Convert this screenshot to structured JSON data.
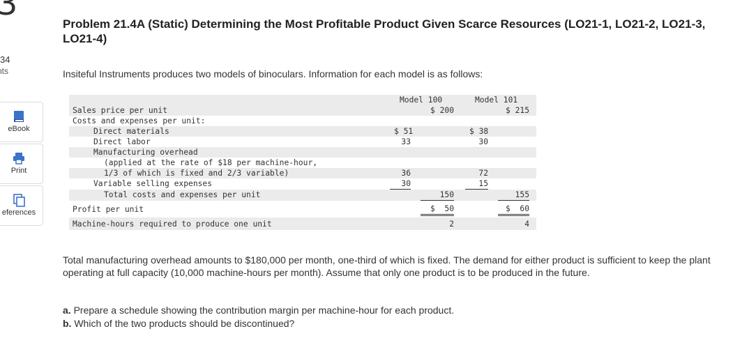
{
  "rail": {
    "question_number": "3",
    "points_value": "34",
    "points_label": "nts",
    "tools": [
      {
        "label": "eBook"
      },
      {
        "label": "Print"
      },
      {
        "label": "eferences"
      }
    ]
  },
  "problem": {
    "title": "Problem 21.4A (Static) Determining the Most Profitable Product Given Scarce Resources (LO21-1, LO21-2, LO21-3, LO21-4)",
    "intro": "Insiteful Instruments produces two models of binoculars. Information for each model is as follows:",
    "paragraph": "Total manufacturing overhead amounts to $180,000 per month, one-third of which is fixed. The demand for either product is sufficient to keep the plant operating at full capacity (10,000 machine-hours per month). Assume that only one product is to be produced in the future.",
    "part_a_letter": "a.",
    "part_a": "Prepare a schedule showing the contribution margin per machine-hour for each product.",
    "part_b_letter": "b.",
    "part_b": "Which of the two products should be discontinued?"
  },
  "table": {
    "col_model_100": "Model 100",
    "col_model_101": "Model 101",
    "sales_label": "Sales price per unit",
    "sales_100": "$ 200",
    "sales_101": "$ 215",
    "costs_label": "Costs and expenses per unit:",
    "dm_label": "Direct materials",
    "dm_100": "$ 51",
    "dm_101": "$ 38",
    "dl_label": "Direct labor",
    "dl_100": "33",
    "dl_101": "30",
    "mo_label": "Manufacturing overhead",
    "mo_note1": "(applied at the rate of $18 per machine-hour,",
    "mo_note2": "1/3 of which is fixed and 2/3 variable)",
    "mo_100": "36",
    "mo_101": "72",
    "vs_label": "Variable selling expenses",
    "vs_100": "30",
    "vs_101": "15",
    "total_label": "Total costs and expenses per unit",
    "total_100": "150",
    "total_101": "155",
    "profit_label": "Profit per unit",
    "profit_100": "$  50",
    "profit_101": "$  60",
    "mh_label": "Machine-hours required to produce one unit",
    "mh_100": "2",
    "mh_101": "4"
  }
}
